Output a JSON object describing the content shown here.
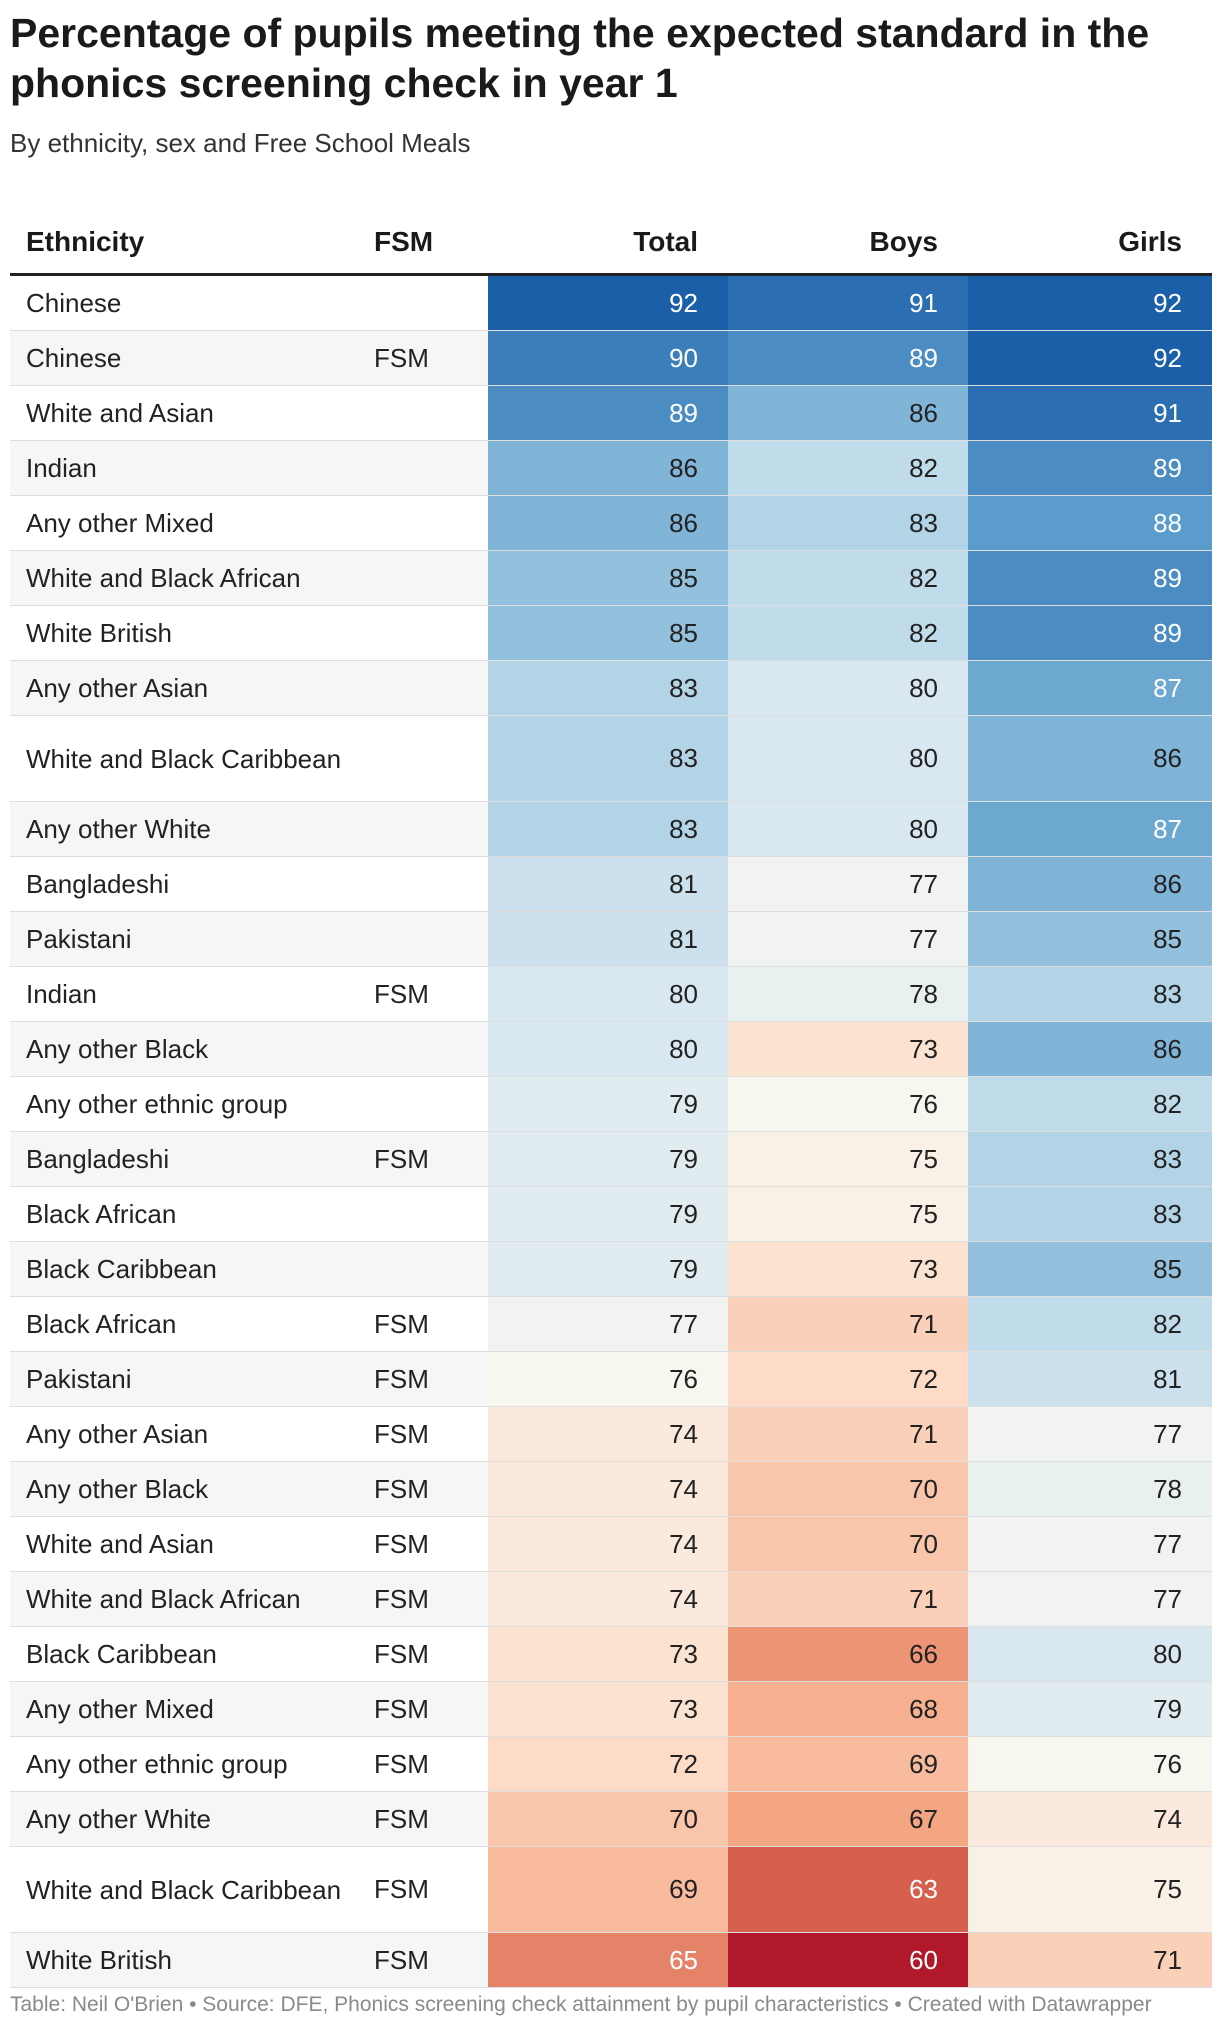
{
  "chart_data": {
    "type": "table",
    "title": "Percentage of pupils meeting the expected standard in the phonics screening check in year 1",
    "subtitle": "By ethnicity, sex and Free School Meals",
    "columns": [
      "Ethnicity",
      "FSM",
      "Total",
      "Boys",
      "Girls"
    ],
    "rows": [
      {
        "ethnicity": "Chinese",
        "fsm": "",
        "total": 92,
        "boys": 91,
        "girls": 92
      },
      {
        "ethnicity": "Chinese",
        "fsm": "FSM",
        "total": 90,
        "boys": 89,
        "girls": 92
      },
      {
        "ethnicity": "White and Asian",
        "fsm": "",
        "total": 89,
        "boys": 86,
        "girls": 91
      },
      {
        "ethnicity": "Indian",
        "fsm": "",
        "total": 86,
        "boys": 82,
        "girls": 89
      },
      {
        "ethnicity": "Any other Mixed",
        "fsm": "",
        "total": 86,
        "boys": 83,
        "girls": 88
      },
      {
        "ethnicity": "White and Black African",
        "fsm": "",
        "total": 85,
        "boys": 82,
        "girls": 89
      },
      {
        "ethnicity": "White British",
        "fsm": "",
        "total": 85,
        "boys": 82,
        "girls": 89
      },
      {
        "ethnicity": "Any other Asian",
        "fsm": "",
        "total": 83,
        "boys": 80,
        "girls": 87
      },
      {
        "ethnicity": "White and Black Caribbean",
        "fsm": "",
        "total": 83,
        "boys": 80,
        "girls": 86
      },
      {
        "ethnicity": "Any other White",
        "fsm": "",
        "total": 83,
        "boys": 80,
        "girls": 87
      },
      {
        "ethnicity": "Bangladeshi",
        "fsm": "",
        "total": 81,
        "boys": 77,
        "girls": 86
      },
      {
        "ethnicity": "Pakistani",
        "fsm": "",
        "total": 81,
        "boys": 77,
        "girls": 85
      },
      {
        "ethnicity": "Indian",
        "fsm": "FSM",
        "total": 80,
        "boys": 78,
        "girls": 83
      },
      {
        "ethnicity": "Any other Black",
        "fsm": "",
        "total": 80,
        "boys": 73,
        "girls": 86
      },
      {
        "ethnicity": "Any other ethnic group",
        "fsm": "",
        "total": 79,
        "boys": 76,
        "girls": 82
      },
      {
        "ethnicity": "Bangladeshi",
        "fsm": "FSM",
        "total": 79,
        "boys": 75,
        "girls": 83
      },
      {
        "ethnicity": "Black African",
        "fsm": "",
        "total": 79,
        "boys": 75,
        "girls": 83
      },
      {
        "ethnicity": "Black Caribbean",
        "fsm": "",
        "total": 79,
        "boys": 73,
        "girls": 85
      },
      {
        "ethnicity": "Black African",
        "fsm": "FSM",
        "total": 77,
        "boys": 71,
        "girls": 82
      },
      {
        "ethnicity": "Pakistani",
        "fsm": "FSM",
        "total": 76,
        "boys": 72,
        "girls": 81
      },
      {
        "ethnicity": "Any other Asian",
        "fsm": "FSM",
        "total": 74,
        "boys": 71,
        "girls": 77
      },
      {
        "ethnicity": "Any other Black",
        "fsm": "FSM",
        "total": 74,
        "boys": 70,
        "girls": 78
      },
      {
        "ethnicity": "White and Asian",
        "fsm": "FSM",
        "total": 74,
        "boys": 70,
        "girls": 77
      },
      {
        "ethnicity": "White and Black African",
        "fsm": "FSM",
        "total": 74,
        "boys": 71,
        "girls": 77
      },
      {
        "ethnicity": "Black Caribbean",
        "fsm": "FSM",
        "total": 73,
        "boys": 66,
        "girls": 80
      },
      {
        "ethnicity": "Any other Mixed",
        "fsm": "FSM",
        "total": 73,
        "boys": 68,
        "girls": 79
      },
      {
        "ethnicity": "Any other ethnic group",
        "fsm": "FSM",
        "total": 72,
        "boys": 69,
        "girls": 76
      },
      {
        "ethnicity": "Any other White",
        "fsm": "FSM",
        "total": 70,
        "boys": 67,
        "girls": 74
      },
      {
        "ethnicity": "White and Black Caribbean",
        "fsm": "FSM",
        "total": 69,
        "boys": 63,
        "girls": 75
      },
      {
        "ethnicity": "White British",
        "fsm": "FSM",
        "total": 65,
        "boys": 60,
        "girls": 71
      }
    ],
    "color_scale": {
      "min": 60,
      "max": 92,
      "stops": [
        {
          "value": 60,
          "color": "#b2182b"
        },
        {
          "value": 63,
          "color": "#d6604d"
        },
        {
          "value": 67,
          "color": "#f4a582"
        },
        {
          "value": 72,
          "color": "#fddbc7"
        },
        {
          "value": 76,
          "color": "#f7f7f0"
        },
        {
          "value": 80,
          "color": "#d9e8f0"
        },
        {
          "value": 84,
          "color": "#a6cde3"
        },
        {
          "value": 88,
          "color": "#5a9ccb"
        },
        {
          "value": 92,
          "color": "#1c5fa9"
        }
      ],
      "dark_text_color": "#222222",
      "light_text_color": "#ffffff"
    },
    "footer": "Table: Neil O'Brien • Source: DFE, Phonics screening check attainment by pupil characteristics • Created with Datawrapper"
  }
}
